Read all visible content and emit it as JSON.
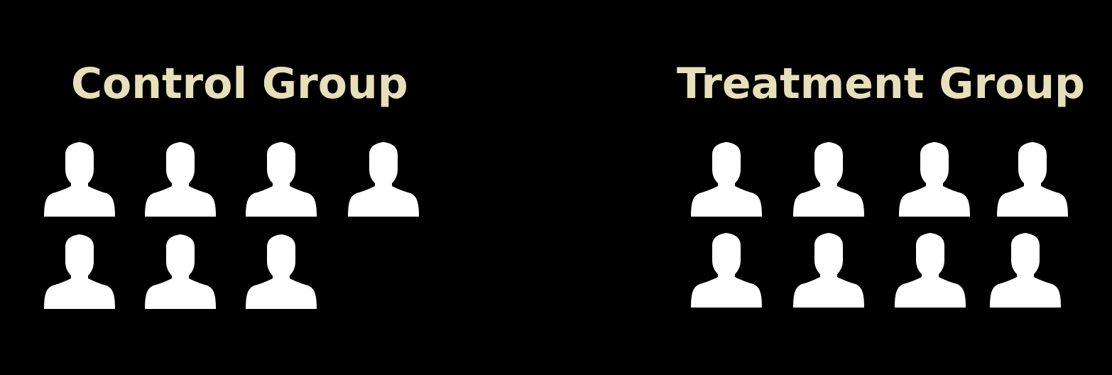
{
  "colors": {
    "background": "#000000",
    "title": "#e6dfb9",
    "person": "#ffffff"
  },
  "groups": [
    {
      "title": "Control Group",
      "person_icon": "person-silhouette-icon",
      "count": 7
    },
    {
      "title": "Treatment Group",
      "person_icon": "person-silhouette-icon",
      "count": 8
    }
  ]
}
